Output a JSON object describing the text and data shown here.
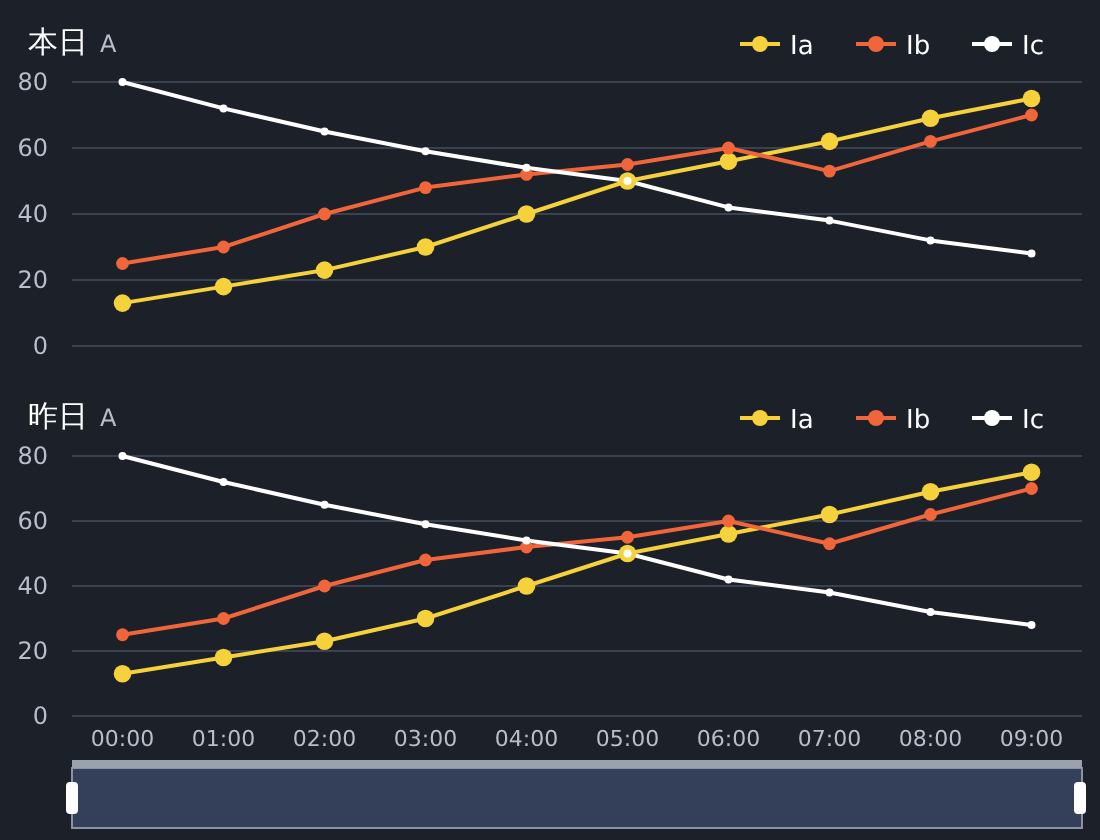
{
  "chart_data": [
    {
      "type": "line",
      "title": "本日",
      "ylabel": "A",
      "categories": [
        null,
        null,
        null,
        null,
        null,
        null,
        null,
        null,
        null,
        null
      ],
      "ylim": [
        0,
        80
      ],
      "yticks": [
        0,
        20,
        40,
        60,
        80
      ],
      "grid": "y",
      "legend": "top right",
      "marker": "circle",
      "series": [
        {
          "name": "Ia",
          "color": "#f5d13c",
          "values": [
            13,
            18,
            23,
            30,
            40,
            50,
            56,
            62,
            69,
            75
          ]
        },
        {
          "name": "Ib",
          "color": "#f0663a",
          "values": [
            25,
            30,
            40,
            48,
            52,
            55,
            60,
            53,
            62,
            70
          ]
        },
        {
          "name": "Ic",
          "color": "#ffffff",
          "values": [
            80,
            72,
            65,
            59,
            54,
            50,
            42,
            38,
            32,
            28
          ]
        }
      ]
    },
    {
      "type": "line",
      "title": "昨日",
      "ylabel": "A",
      "categories": [
        "00:00",
        "01:00",
        "02:00",
        "03:00",
        "04:00",
        "05:00",
        "06:00",
        "07:00",
        "08:00",
        "09:00"
      ],
      "ylim": [
        0,
        80
      ],
      "yticks": [
        0,
        20,
        40,
        60,
        80
      ],
      "grid": "y",
      "legend": "top right",
      "marker": "circle",
      "series": [
        {
          "name": "Ia",
          "color": "#f5d13c",
          "values": [
            13,
            18,
            23,
            30,
            40,
            50,
            56,
            62,
            69,
            75
          ]
        },
        {
          "name": "Ib",
          "color": "#f0663a",
          "values": [
            25,
            30,
            40,
            48,
            52,
            55,
            60,
            53,
            62,
            70
          ]
        },
        {
          "name": "Ic",
          "color": "#ffffff",
          "values": [
            80,
            72,
            65,
            59,
            54,
            50,
            42,
            38,
            32,
            28
          ]
        }
      ]
    }
  ]
}
